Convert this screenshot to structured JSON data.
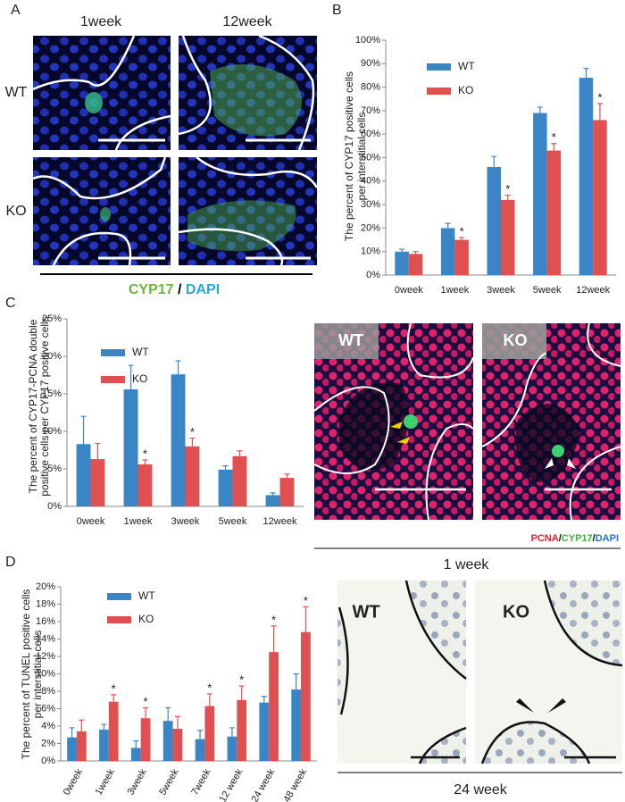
{
  "panels": {
    "A": {
      "letter": "A",
      "columns": [
        "1week",
        "12week"
      ],
      "rows": [
        "WT",
        "KO"
      ],
      "legend": [
        "CYP17",
        "/",
        "DAPI"
      ]
    },
    "B": {
      "letter": "B"
    },
    "C": {
      "letter": "C",
      "images": [
        "WT",
        "KO"
      ],
      "legend": [
        "PCNA",
        "/",
        "CYP17",
        "/",
        "DAPI"
      ],
      "caption": "1 week"
    },
    "D": {
      "letter": "D",
      "images": [
        "WT",
        "KO"
      ],
      "caption": "24 week"
    }
  },
  "chart_data": [
    {
      "type": "bar",
      "ylabel": [
        "The percent of CYP17 positive cells",
        "per interstitial cells"
      ],
      "categories": [
        "0week",
        "1week",
        "3week",
        "5week",
        "12week"
      ],
      "series": [
        {
          "name": "WT",
          "color": "#3a85c6",
          "values": [
            10,
            20,
            46,
            69,
            84
          ],
          "errors": [
            1,
            2,
            4.5,
            2.5,
            4
          ]
        },
        {
          "name": "KO",
          "color": "#e05050",
          "values": [
            9,
            15,
            32,
            53,
            66
          ],
          "errors": [
            1,
            1,
            2,
            3,
            7
          ],
          "markers": [
            null,
            "*",
            "*",
            "*",
            "*"
          ]
        }
      ],
      "ylim": [
        0,
        100
      ],
      "yticks": [
        {
          "value": 0,
          "label": "0%"
        },
        {
          "value": 10,
          "label": "10%"
        },
        {
          "value": 20,
          "label": "20%"
        },
        {
          "value": 30,
          "label": "30%"
        },
        {
          "value": 40,
          "label": "40%"
        },
        {
          "value": 50,
          "label": "50%"
        },
        {
          "value": 60,
          "label": "60%"
        },
        {
          "value": 70,
          "label": "70%"
        },
        {
          "value": 80,
          "label": "80%"
        },
        {
          "value": 90,
          "label": "90%"
        },
        {
          "value": 100,
          "label": "100%"
        }
      ]
    },
    {
      "type": "bar",
      "ylabel": [
        "The percent of CYP17-PCNA double",
        "positive cells per CYP17 positive cells"
      ],
      "categories": [
        "0week",
        "1week",
        "3week",
        "5week",
        "12week"
      ],
      "series": [
        {
          "name": "WT",
          "color": "#3a85c6",
          "values": [
            8.3,
            15.6,
            17.6,
            4.9,
            1.5
          ],
          "errors": [
            3.7,
            3.2,
            1.8,
            0.5,
            0.3
          ]
        },
        {
          "name": "KO",
          "color": "#e05050",
          "values": [
            6.3,
            5.6,
            8.0,
            6.7,
            3.8
          ],
          "errors": [
            2.1,
            0.6,
            1.1,
            0.7,
            0.5
          ],
          "markers": [
            null,
            "*",
            "*",
            null,
            null
          ]
        }
      ],
      "ylim": [
        0,
        25
      ],
      "yticks": [
        {
          "value": 0,
          "label": "0%"
        },
        {
          "value": 5,
          "label": "5%"
        },
        {
          "value": 10,
          "label": "10%"
        },
        {
          "value": 15,
          "label": "15%"
        },
        {
          "value": 20,
          "label": "20%"
        },
        {
          "value": 25,
          "label": "25%"
        }
      ]
    },
    {
      "type": "bar",
      "ylabel": [
        "The percent of TUNEL positive cells",
        "per interstitial cells"
      ],
      "categories": [
        "0week",
        "1week",
        "3week",
        "5week",
        "7week",
        "12 week",
        "24 week",
        "48 week"
      ],
      "series": [
        {
          "name": "WT",
          "color": "#3a85c6",
          "values": [
            2.7,
            3.6,
            1.5,
            4.6,
            2.5,
            2.8,
            6.7,
            8.2
          ],
          "errors": [
            1.1,
            0.6,
            0.8,
            1.5,
            1.0,
            1.0,
            0.7,
            1.8
          ]
        },
        {
          "name": "KO",
          "color": "#e05050",
          "values": [
            3.4,
            6.8,
            4.9,
            3.7,
            6.3,
            7.0,
            12.5,
            14.8
          ],
          "errors": [
            1.3,
            0.8,
            1.2,
            1.4,
            1.4,
            1.6,
            3.0,
            2.9
          ],
          "markers": [
            null,
            "*",
            "*",
            null,
            "*",
            "*",
            "*",
            "*"
          ]
        }
      ],
      "ylim": [
        0,
        20
      ],
      "yticks": [
        {
          "value": 0,
          "label": "0%"
        },
        {
          "value": 2,
          "label": "2%"
        },
        {
          "value": 4,
          "label": "4%"
        },
        {
          "value": 6,
          "label": "6%"
        },
        {
          "value": 8,
          "label": "8%"
        },
        {
          "value": 10,
          "label": "10%"
        },
        {
          "value": 12,
          "label": "12%"
        },
        {
          "value": 14,
          "label": "14%"
        },
        {
          "value": 16,
          "label": "16%"
        },
        {
          "value": 18,
          "label": "18%"
        },
        {
          "value": 20,
          "label": "20%"
        }
      ]
    }
  ]
}
